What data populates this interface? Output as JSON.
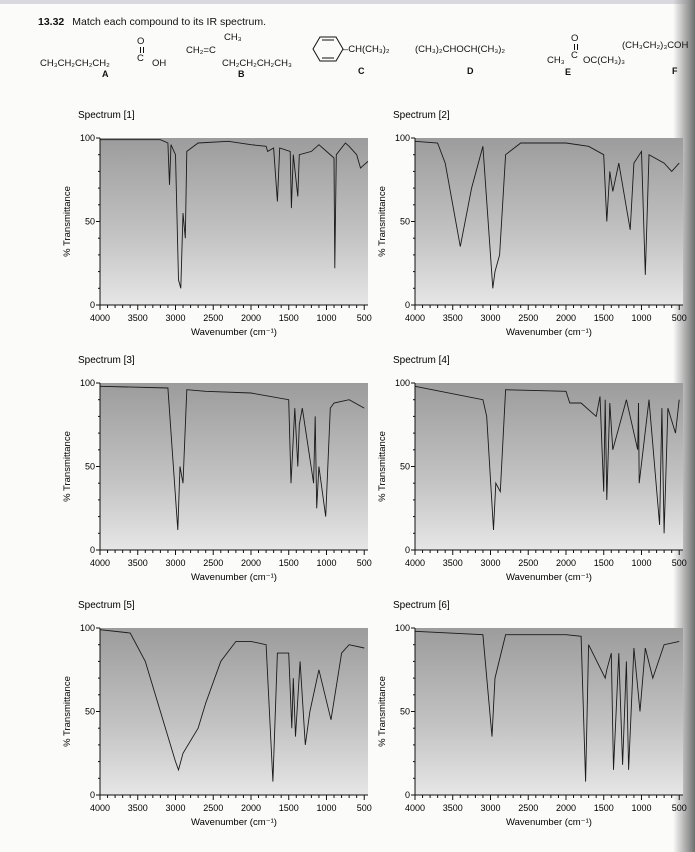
{
  "problem": {
    "number": "13.32",
    "text": "Match each compound to its IR spectrum."
  },
  "compounds": [
    {
      "label": "A",
      "chain": "CH₃CH₂CH₂CH₂",
      "carbon": "C",
      "o": "O",
      "oh": "OH"
    },
    {
      "label": "B",
      "top": "CH₃",
      "left": "CH₂=C",
      "bottom": "CH₂CH₂CH₂CH₃"
    },
    {
      "label": "C",
      "substituent": "–CH(CH₃)₂"
    },
    {
      "label": "D",
      "formula": "(CH₃)₂CHOCH(CH₃)₂"
    },
    {
      "label": "E",
      "o": "O",
      "carbon": "C",
      "left": "CH₃",
      "right": "OC(CH₃)₃"
    },
    {
      "label": "F",
      "formula": "(CH₃CH₂)₃COH"
    }
  ],
  "chart_data": [
    {
      "type": "line",
      "title": "Spectrum [1]",
      "xlabel": "Wavenumber (cm⁻¹)",
      "ylabel": "% Transmittance",
      "xlim": [
        4000,
        450
      ],
      "ylim": [
        0,
        100
      ],
      "x_reversed": true,
      "xticks": [
        "4000",
        "3500",
        "3000",
        "2500",
        "2000",
        "1500",
        "1000",
        "500"
      ],
      "yticks": [
        "0",
        "50",
        "100"
      ],
      "points": [
        [
          4000,
          99
        ],
        [
          3200,
          99
        ],
        [
          3100,
          97
        ],
        [
          3080,
          72
        ],
        [
          3060,
          96
        ],
        [
          3000,
          90
        ],
        [
          2960,
          15
        ],
        [
          2930,
          10
        ],
        [
          2900,
          55
        ],
        [
          2870,
          40
        ],
        [
          2850,
          92
        ],
        [
          2700,
          97
        ],
        [
          2300,
          98
        ],
        [
          2000,
          96
        ],
        [
          1800,
          95
        ],
        [
          1780,
          92
        ],
        [
          1700,
          94
        ],
        [
          1650,
          62
        ],
        [
          1620,
          94
        ],
        [
          1480,
          92
        ],
        [
          1465,
          58
        ],
        [
          1440,
          90
        ],
        [
          1380,
          65
        ],
        [
          1360,
          90
        ],
        [
          1200,
          92
        ],
        [
          1100,
          96
        ],
        [
          1000,
          92
        ],
        [
          900,
          88
        ],
        [
          890,
          22
        ],
        [
          870,
          90
        ],
        [
          750,
          97
        ],
        [
          700,
          95
        ],
        [
          600,
          90
        ],
        [
          550,
          82
        ],
        [
          500,
          84
        ],
        [
          450,
          86
        ]
      ]
    },
    {
      "type": "line",
      "title": "Spectrum [2]",
      "xlabel": "Wavenumber (cm⁻¹)",
      "ylabel": "% Transmittance",
      "xlim": [
        4000,
        450
      ],
      "ylim": [
        0,
        100
      ],
      "x_reversed": true,
      "xticks": [
        "4000",
        "3500",
        "3000",
        "2500",
        "2000",
        "1500",
        "1000",
        "500"
      ],
      "yticks": [
        "0",
        "50",
        "100"
      ],
      "points": [
        [
          4000,
          98
        ],
        [
          3700,
          97
        ],
        [
          3600,
          85
        ],
        [
          3400,
          35
        ],
        [
          3250,
          70
        ],
        [
          3100,
          95
        ],
        [
          2970,
          10
        ],
        [
          2940,
          20
        ],
        [
          2880,
          30
        ],
        [
          2800,
          90
        ],
        [
          2600,
          97
        ],
        [
          2000,
          97
        ],
        [
          1700,
          95
        ],
        [
          1500,
          90
        ],
        [
          1460,
          50
        ],
        [
          1420,
          80
        ],
        [
          1380,
          68
        ],
        [
          1300,
          85
        ],
        [
          1150,
          45
        ],
        [
          1100,
          85
        ],
        [
          1000,
          92
        ],
        [
          950,
          18
        ],
        [
          900,
          90
        ],
        [
          700,
          85
        ],
        [
          600,
          80
        ],
        [
          500,
          85
        ]
      ]
    },
    {
      "type": "line",
      "title": "Spectrum [3]",
      "xlabel": "Wavenumber (cm⁻¹)",
      "ylabel": "% Transmittance",
      "xlim": [
        4000,
        450
      ],
      "ylim": [
        0,
        100
      ],
      "x_reversed": true,
      "xticks": [
        "4000",
        "3500",
        "3000",
        "2500",
        "2000",
        "1500",
        "1000",
        "500"
      ],
      "yticks": [
        "0",
        "50",
        "100"
      ],
      "points": [
        [
          4000,
          98
        ],
        [
          3100,
          97
        ],
        [
          2970,
          12
        ],
        [
          2940,
          50
        ],
        [
          2900,
          40
        ],
        [
          2850,
          96
        ],
        [
          2600,
          95
        ],
        [
          2000,
          94
        ],
        [
          1500,
          90
        ],
        [
          1470,
          40
        ],
        [
          1420,
          85
        ],
        [
          1380,
          50
        ],
        [
          1360,
          75
        ],
        [
          1320,
          85
        ],
        [
          1170,
          40
        ],
        [
          1150,
          80
        ],
        [
          1130,
          25
        ],
        [
          1100,
          50
        ],
        [
          1010,
          20
        ],
        [
          950,
          85
        ],
        [
          900,
          88
        ],
        [
          700,
          90
        ],
        [
          500,
          85
        ]
      ]
    },
    {
      "type": "line",
      "title": "Spectrum [4]",
      "xlabel": "Wavenumber (cm⁻¹)",
      "ylabel": "% Transmittance",
      "xlim": [
        4000,
        450
      ],
      "ylim": [
        0,
        100
      ],
      "x_reversed": true,
      "xticks": [
        "4000",
        "3500",
        "3000",
        "2500",
        "2000",
        "1500",
        "1000",
        "500"
      ],
      "yticks": [
        "0",
        "50",
        "100"
      ],
      "points": [
        [
          4000,
          98
        ],
        [
          3100,
          90
        ],
        [
          3050,
          80
        ],
        [
          2960,
          12
        ],
        [
          2930,
          40
        ],
        [
          2870,
          35
        ],
        [
          2800,
          96
        ],
        [
          2000,
          95
        ],
        [
          1950,
          88
        ],
        [
          1800,
          88
        ],
        [
          1600,
          80
        ],
        [
          1550,
          92
        ],
        [
          1500,
          35
        ],
        [
          1480,
          90
        ],
        [
          1460,
          30
        ],
        [
          1420,
          88
        ],
        [
          1380,
          60
        ],
        [
          1200,
          90
        ],
        [
          1050,
          60
        ],
        [
          1040,
          88
        ],
        [
          1030,
          40
        ],
        [
          900,
          90
        ],
        [
          760,
          15
        ],
        [
          730,
          85
        ],
        [
          700,
          10
        ],
        [
          650,
          85
        ],
        [
          550,
          70
        ],
        [
          500,
          90
        ]
      ]
    },
    {
      "type": "line",
      "title": "Spectrum [5]",
      "xlabel": "Wavenumber (cm⁻¹)",
      "ylabel": "% Transmittance",
      "xlim": [
        4000,
        450
      ],
      "ylim": [
        0,
        100
      ],
      "x_reversed": true,
      "xticks": [
        "4000",
        "3500",
        "3000",
        "2500",
        "2000",
        "1500",
        "1000",
        "500"
      ],
      "yticks": [
        "0",
        "50",
        "100"
      ],
      "points": [
        [
          4000,
          99
        ],
        [
          3600,
          97
        ],
        [
          3400,
          80
        ],
        [
          3200,
          50
        ],
        [
          3000,
          20
        ],
        [
          2960,
          15
        ],
        [
          2900,
          25
        ],
        [
          2700,
          40
        ],
        [
          2600,
          55
        ],
        [
          2400,
          80
        ],
        [
          2200,
          92
        ],
        [
          2000,
          92
        ],
        [
          1800,
          90
        ],
        [
          1710,
          8
        ],
        [
          1650,
          85
        ],
        [
          1500,
          85
        ],
        [
          1460,
          40
        ],
        [
          1440,
          70
        ],
        [
          1410,
          35
        ],
        [
          1350,
          80
        ],
        [
          1280,
          30
        ],
        [
          1220,
          50
        ],
        [
          1100,
          75
        ],
        [
          940,
          45
        ],
        [
          800,
          85
        ],
        [
          700,
          90
        ],
        [
          500,
          88
        ]
      ]
    },
    {
      "type": "line",
      "title": "Spectrum [6]",
      "xlabel": "Wavenumber (cm⁻¹)",
      "ylabel": "% Transmittance",
      "xlim": [
        4000,
        450
      ],
      "ylim": [
        0,
        100
      ],
      "x_reversed": true,
      "xticks": [
        "4000",
        "3500",
        "3000",
        "2500",
        "2000",
        "1500",
        "1000",
        "500"
      ],
      "yticks": [
        "0",
        "50",
        "100"
      ],
      "points": [
        [
          4000,
          98
        ],
        [
          3100,
          96
        ],
        [
          2980,
          35
        ],
        [
          2940,
          70
        ],
        [
          2800,
          96
        ],
        [
          2000,
          96
        ],
        [
          1800,
          95
        ],
        [
          1740,
          8
        ],
        [
          1700,
          90
        ],
        [
          1480,
          70
        ],
        [
          1460,
          75
        ],
        [
          1400,
          85
        ],
        [
          1370,
          15
        ],
        [
          1300,
          85
        ],
        [
          1250,
          18
        ],
        [
          1200,
          80
        ],
        [
          1170,
          15
        ],
        [
          1100,
          88
        ],
        [
          1020,
          50
        ],
        [
          950,
          88
        ],
        [
          850,
          70
        ],
        [
          700,
          90
        ],
        [
          500,
          92
        ]
      ]
    }
  ]
}
